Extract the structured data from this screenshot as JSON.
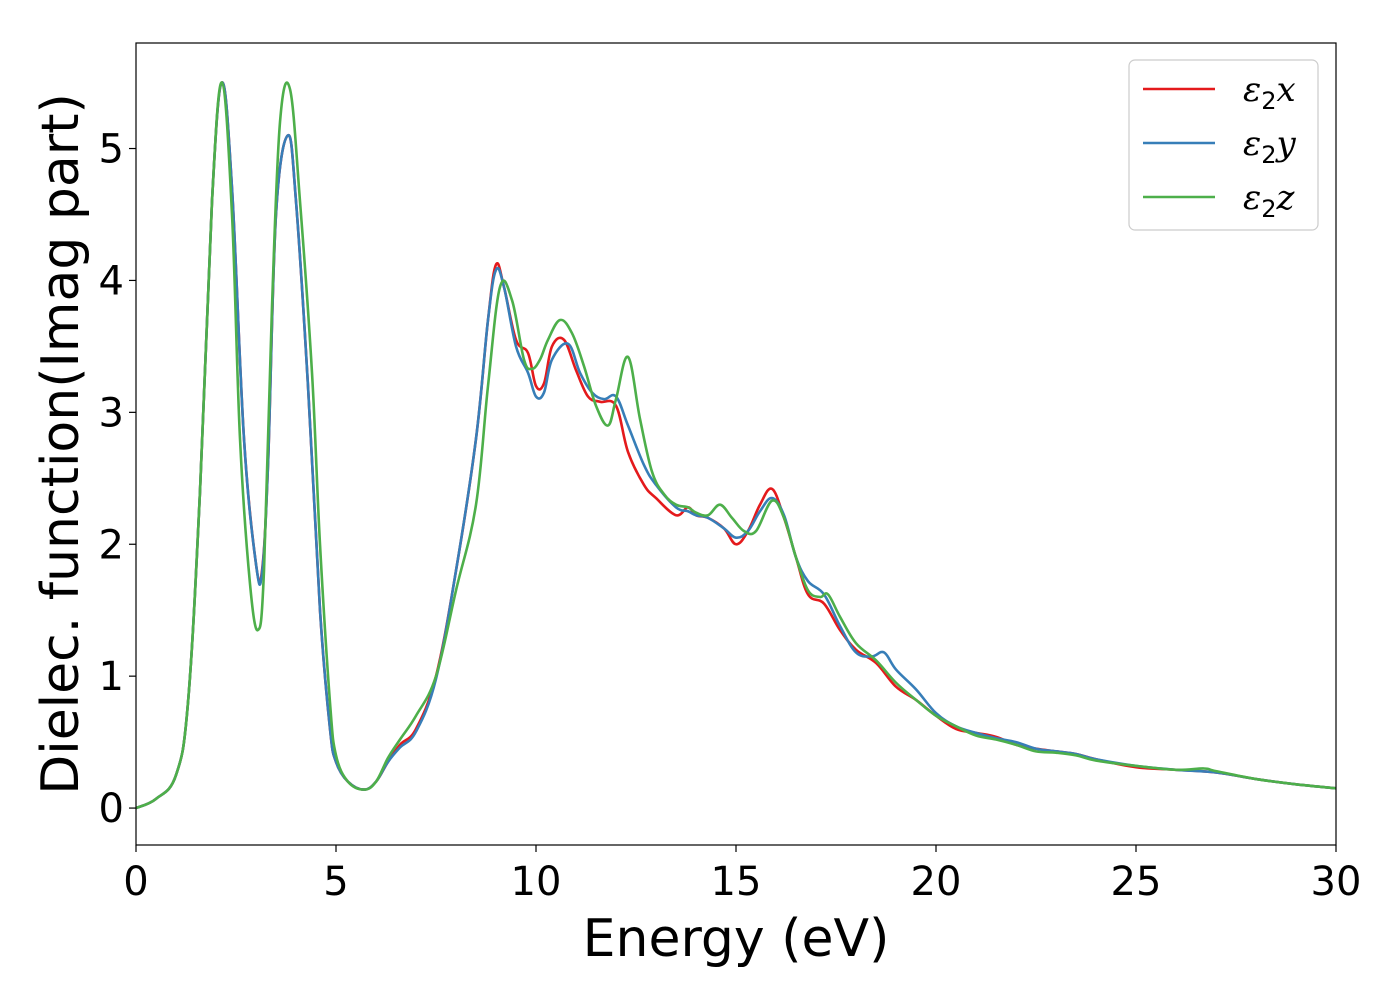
{
  "chart_data": {
    "type": "line",
    "title": "",
    "xlabel": "Energy (eV)",
    "ylabel": "Dielec. function(Imag part)",
    "xlim": [
      0,
      30
    ],
    "ylim": [
      -0.28,
      5.8
    ],
    "xticks": [
      0,
      5,
      10,
      15,
      20,
      25,
      30
    ],
    "yticks": [
      0,
      1,
      2,
      3,
      4,
      5
    ],
    "grid": false,
    "legend_position": "top-right",
    "series": [
      {
        "name": "ε2x",
        "legend": {
          "symbol": "ε",
          "sub": "2",
          "suffix": "x"
        },
        "color": "#e41a1c",
        "x": [
          0,
          0.5,
          1.0,
          1.3,
          1.6,
          1.9,
          2.15,
          2.4,
          2.7,
          3.0,
          3.15,
          3.3,
          3.5,
          3.8,
          4.0,
          4.3,
          4.6,
          4.85,
          5.0,
          5.3,
          5.7,
          6.0,
          6.3,
          6.6,
          7.0,
          7.5,
          8.0,
          8.5,
          8.8,
          9.0,
          9.2,
          9.5,
          9.8,
          10.0,
          10.2,
          10.4,
          10.7,
          11.0,
          11.3,
          11.6,
          12.0,
          12.3,
          12.7,
          13.0,
          13.5,
          13.8,
          14.0,
          14.3,
          14.7,
          15.0,
          15.3,
          15.6,
          15.9,
          16.2,
          16.5,
          16.8,
          17.2,
          17.6,
          18.0,
          18.5,
          19.0,
          19.5,
          20.0,
          20.5,
          21.0,
          21.5,
          22.0,
          22.5,
          23.0,
          23.5,
          24.0,
          25.0,
          26.0,
          27.0,
          28.0,
          29.0,
          30.0
        ],
        "y": [
          0.0,
          0.07,
          0.25,
          0.8,
          2.4,
          4.6,
          5.5,
          4.7,
          2.8,
          1.85,
          1.8,
          2.6,
          4.5,
          5.1,
          4.6,
          3.2,
          1.5,
          0.6,
          0.35,
          0.2,
          0.14,
          0.2,
          0.35,
          0.48,
          0.6,
          1.0,
          1.8,
          2.8,
          3.7,
          4.12,
          3.95,
          3.55,
          3.45,
          3.2,
          3.22,
          3.5,
          3.55,
          3.32,
          3.12,
          3.08,
          3.05,
          2.7,
          2.45,
          2.35,
          2.22,
          2.28,
          2.22,
          2.2,
          2.12,
          2.0,
          2.1,
          2.3,
          2.42,
          2.2,
          1.9,
          1.62,
          1.55,
          1.35,
          1.2,
          1.1,
          0.92,
          0.82,
          0.7,
          0.6,
          0.57,
          0.54,
          0.48,
          0.45,
          0.43,
          0.41,
          0.37,
          0.31,
          0.29,
          0.27,
          0.22,
          0.18,
          0.15
        ]
      },
      {
        "name": "ε2y",
        "legend": {
          "symbol": "ε",
          "sub": "2",
          "suffix": "y"
        },
        "color": "#377eb8",
        "x": [
          0,
          0.5,
          1.0,
          1.3,
          1.6,
          1.9,
          2.15,
          2.4,
          2.7,
          3.0,
          3.15,
          3.3,
          3.5,
          3.8,
          4.0,
          4.3,
          4.6,
          4.85,
          5.0,
          5.3,
          5.7,
          6.0,
          6.3,
          6.6,
          7.0,
          7.5,
          8.0,
          8.5,
          8.8,
          9.0,
          9.2,
          9.5,
          9.8,
          10.0,
          10.2,
          10.4,
          10.8,
          11.1,
          11.4,
          11.7,
          12.0,
          12.3,
          12.7,
          13.0,
          13.5,
          13.8,
          14.0,
          14.3,
          14.7,
          15.0,
          15.3,
          15.6,
          15.9,
          16.2,
          16.5,
          16.8,
          17.2,
          17.6,
          18.0,
          18.4,
          18.7,
          19.0,
          19.5,
          20.0,
          20.5,
          21.0,
          21.5,
          22.0,
          22.5,
          23.0,
          23.5,
          24.0,
          25.0,
          26.0,
          27.0,
          28.0,
          29.0,
          30.0
        ],
        "y": [
          0.0,
          0.07,
          0.25,
          0.8,
          2.4,
          4.6,
          5.5,
          4.7,
          2.8,
          1.85,
          1.78,
          2.6,
          4.5,
          5.1,
          4.6,
          3.2,
          1.5,
          0.6,
          0.35,
          0.2,
          0.14,
          0.2,
          0.35,
          0.46,
          0.58,
          0.98,
          1.8,
          2.8,
          3.7,
          4.08,
          3.95,
          3.5,
          3.3,
          3.12,
          3.15,
          3.4,
          3.52,
          3.3,
          3.15,
          3.1,
          3.12,
          2.9,
          2.6,
          2.45,
          2.28,
          2.25,
          2.22,
          2.2,
          2.12,
          2.05,
          2.1,
          2.25,
          2.35,
          2.22,
          1.9,
          1.72,
          1.62,
          1.38,
          1.18,
          1.15,
          1.18,
          1.05,
          0.9,
          0.72,
          0.62,
          0.57,
          0.53,
          0.5,
          0.45,
          0.43,
          0.41,
          0.37,
          0.32,
          0.29,
          0.27,
          0.22,
          0.18,
          0.15
        ]
      },
      {
        "name": "ε2z",
        "legend": {
          "symbol": "ε",
          "sub": "2",
          "suffix": "z"
        },
        "color": "#4daf4a",
        "x": [
          0,
          0.5,
          1.0,
          1.3,
          1.6,
          1.9,
          2.15,
          2.4,
          2.6,
          2.85,
          3.05,
          3.2,
          3.4,
          3.6,
          3.85,
          4.1,
          4.4,
          4.6,
          4.85,
          5.0,
          5.3,
          5.7,
          6.0,
          6.3,
          6.6,
          7.0,
          7.5,
          8.0,
          8.5,
          8.8,
          9.1,
          9.4,
          9.7,
          9.9,
          10.1,
          10.3,
          10.6,
          10.9,
          11.2,
          11.5,
          11.8,
          12.0,
          12.3,
          12.6,
          12.9,
          13.2,
          13.5,
          13.8,
          14.0,
          14.3,
          14.6,
          14.9,
          15.2,
          15.5,
          15.9,
          16.2,
          16.5,
          16.8,
          17.1,
          17.3,
          17.6,
          18.0,
          18.5,
          19.0,
          19.5,
          20.0,
          20.5,
          21.0,
          21.5,
          22.0,
          22.5,
          23.0,
          23.5,
          24.0,
          25.0,
          26.0,
          26.7,
          27.0,
          28.0,
          29.0,
          30.0
        ],
        "y": [
          0.0,
          0.07,
          0.25,
          0.8,
          2.4,
          4.6,
          5.5,
          4.5,
          2.8,
          1.7,
          1.35,
          1.8,
          3.8,
          5.2,
          5.45,
          4.6,
          3.3,
          2.0,
          0.8,
          0.4,
          0.2,
          0.14,
          0.2,
          0.38,
          0.52,
          0.7,
          1.0,
          1.65,
          2.3,
          3.2,
          3.95,
          3.85,
          3.4,
          3.33,
          3.4,
          3.55,
          3.7,
          3.6,
          3.35,
          3.05,
          2.9,
          3.1,
          3.42,
          2.95,
          2.55,
          2.38,
          2.3,
          2.28,
          2.24,
          2.22,
          2.3,
          2.2,
          2.1,
          2.1,
          2.33,
          2.2,
          1.9,
          1.65,
          1.6,
          1.62,
          1.45,
          1.25,
          1.12,
          0.95,
          0.82,
          0.7,
          0.62,
          0.55,
          0.52,
          0.48,
          0.43,
          0.42,
          0.4,
          0.36,
          0.32,
          0.29,
          0.3,
          0.28,
          0.22,
          0.18,
          0.15
        ]
      }
    ]
  }
}
